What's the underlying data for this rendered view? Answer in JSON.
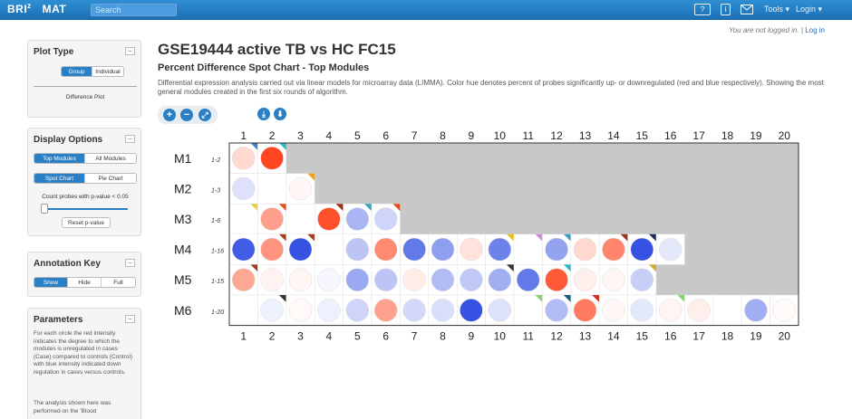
{
  "nav": {
    "brand": "BRI",
    "brand_sup": "2",
    "brand_suffix": "MAT",
    "search_placeholder": "Search",
    "help_icon_label": "?",
    "info_icon_label": "i",
    "tools_label": "Tools ▾",
    "login_label": "Login ▾"
  },
  "status": {
    "not_logged_in": "You are not logged in.",
    "separator": "|",
    "login_link": "Log in"
  },
  "sidebar": {
    "plot_type": {
      "title": "Plot Type",
      "buttons": [
        "Group",
        "Individual"
      ],
      "selected": "Group",
      "current": "Difference Plot"
    },
    "display_options": {
      "title": "Display Options",
      "module_buttons": [
        "Top Modules",
        "All Modules"
      ],
      "chart_buttons": [
        "Spot Chart",
        "Pie Chart"
      ],
      "selected_module": "Top Modules",
      "selected_chart": "Spot Chart",
      "pvalue_label": "Count probes with p-value < 0.05",
      "reset_label": "Reset p-value"
    },
    "annotation_key": {
      "title": "Annotation Key",
      "buttons": [
        "Show",
        "Hide",
        "Full"
      ],
      "selected": "Show"
    },
    "parameters": {
      "title": "Parameters",
      "text1": "For each circle the red intensity indicates the degree to which the modules is unregulated in cases (Case) compared to controls (Control) with blue intensity indicated down regulation in cases versus controls.",
      "text2": "The analysis shown here was performed on the 'Blood"
    },
    "minimize_label": "–"
  },
  "main": {
    "title": "GSE19444 active TB vs HC FC15",
    "subtitle": "Percent Difference Spot Chart - Top Modules",
    "description": "Differential expression analysis carried out via linear models for microarray data (LIMMA). Color hue denotes percent of probes significantly up- or downregulated (red and blue respectively). Showing the most general modules created in the first six rounds of algorithm."
  },
  "toolbar": {
    "zoom_in": "+",
    "zoom_out": "−",
    "fit": "⤢",
    "download1": "⤓",
    "download2": "⬇",
    "zoom_in_icon": "plus-circle-icon",
    "zoom_out_icon": "minus-circle-icon",
    "fit_icon": "fit-screen-icon",
    "download_icons": [
      "download-image-icon",
      "download-data-icon"
    ]
  },
  "colors": {
    "brand": "#2a7fc5",
    "up": "#ff3c14",
    "down": "#1f3fe0",
    "grey": "#c8c8c8"
  },
  "chart_data": {
    "type": "heatmap",
    "columns": [
      "1",
      "2",
      "3",
      "4",
      "5",
      "6",
      "7",
      "8",
      "9",
      "10",
      "11",
      "12",
      "13",
      "14",
      "15",
      "16",
      "17",
      "18",
      "19",
      "20"
    ],
    "rows": [
      {
        "module": "M1",
        "range": "1-2",
        "values": [
          0.2,
          0.95,
          null,
          null,
          null,
          null,
          null,
          null,
          null,
          null,
          null,
          null,
          null,
          null,
          null,
          null,
          null,
          null,
          null,
          null
        ],
        "corners": [
          "#3a7fd0",
          "#2fb8c8",
          null,
          null,
          null,
          null,
          null,
          null,
          null,
          null,
          null,
          null,
          null,
          null,
          null,
          null,
          null,
          null,
          null,
          null
        ]
      },
      {
        "module": "M2",
        "range": "1-3",
        "values": [
          -0.15,
          0,
          0.04,
          null,
          null,
          null,
          null,
          null,
          null,
          null,
          null,
          null,
          null,
          null,
          null,
          null,
          null,
          null,
          null,
          null
        ],
        "corners": [
          null,
          null,
          "#f0a020",
          null,
          null,
          null,
          null,
          null,
          null,
          null,
          null,
          null,
          null,
          null,
          null,
          null,
          null,
          null,
          null,
          null
        ]
      },
      {
        "module": "M3",
        "range": "1-6",
        "values": [
          0,
          0.5,
          0,
          0.9,
          -0.38,
          -0.22,
          null,
          null,
          null,
          null,
          null,
          null,
          null,
          null,
          null,
          null,
          null,
          null,
          null,
          null
        ],
        "corners": [
          "#e8d040",
          "#e05020",
          null,
          "#a03020",
          "#3aa0c0",
          "#e05020",
          null,
          null,
          null,
          null,
          null,
          null,
          null,
          null,
          null,
          null,
          null,
          null,
          null,
          null
        ]
      },
      {
        "module": "M4",
        "range": "1-16",
        "values": [
          -0.85,
          0.55,
          -0.9,
          0,
          -0.3,
          0.6,
          -0.7,
          -0.5,
          0.15,
          -0.65,
          0,
          -0.48,
          0.2,
          0.62,
          -0.9,
          -0.12,
          null,
          null,
          null,
          null
        ],
        "corners": [
          null,
          "#a04020",
          "#a04020",
          null,
          null,
          null,
          null,
          null,
          null,
          "#e8c020",
          "#c890d0",
          "#3aa0c0",
          null,
          "#a03020",
          "#1a2a5a",
          null,
          null,
          null,
          null,
          null
        ]
      },
      {
        "module": "M5",
        "range": "1-15",
        "values": [
          0.45,
          0.06,
          0.05,
          -0.04,
          -0.45,
          -0.3,
          0.1,
          -0.35,
          -0.28,
          -0.42,
          -0.7,
          0.85,
          0.08,
          0.05,
          -0.25,
          null,
          null,
          null,
          null,
          null
        ],
        "corners": [
          "#a04020",
          null,
          null,
          null,
          null,
          null,
          null,
          null,
          null,
          "#333333",
          null,
          "#2fb8c8",
          null,
          null,
          "#d0b020",
          null,
          null,
          null,
          null,
          null
        ]
      },
      {
        "module": "M6",
        "range": "1-20",
        "values": [
          0,
          -0.08,
          0.03,
          -0.08,
          -0.22,
          0.48,
          -0.2,
          -0.17,
          -0.9,
          -0.15,
          0,
          -0.35,
          0.68,
          0.04,
          -0.12,
          0.05,
          0.08,
          0,
          -0.42,
          0.03
        ],
        "corners": [
          null,
          "#333333",
          null,
          null,
          null,
          null,
          null,
          null,
          null,
          null,
          "#8ad070",
          "#1a5a7a",
          "#d03020",
          null,
          null,
          "#8ad070",
          null,
          null,
          null,
          null
        ]
      }
    ]
  }
}
